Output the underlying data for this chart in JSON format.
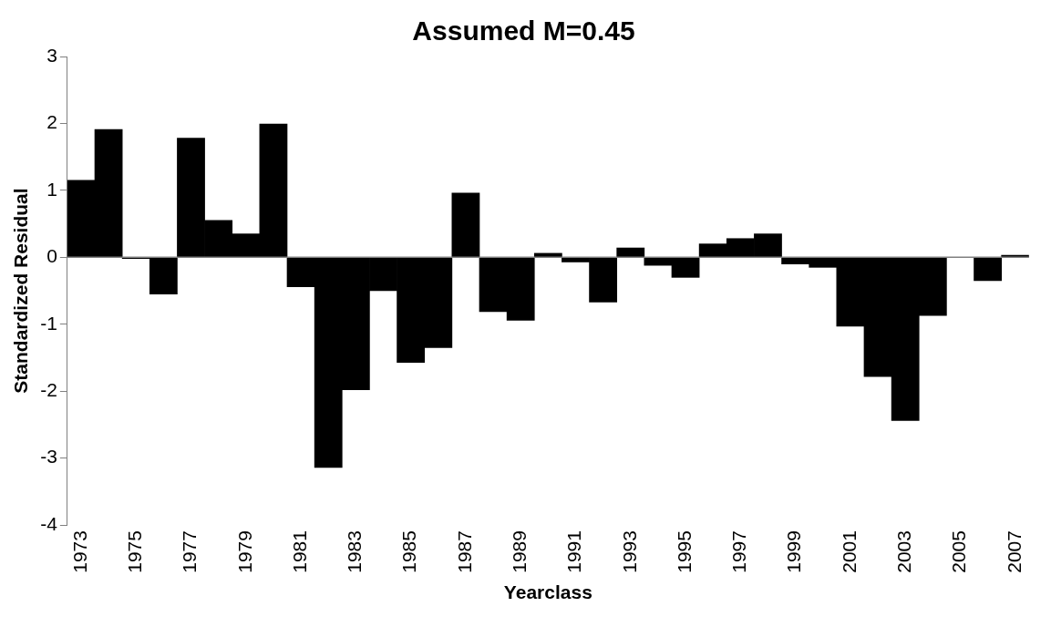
{
  "chart_data": {
    "type": "bar",
    "title": "Assumed M=0.45",
    "xlabel": "Yearclass",
    "ylabel": "Standardized Residual",
    "categories": [
      "1973",
      null,
      "1975",
      null,
      "1977",
      null,
      "1979",
      null,
      "1981",
      null,
      "1983",
      null,
      "1985",
      null,
      "1987",
      null,
      "1989",
      null,
      "1991",
      null,
      "1993",
      null,
      "1995",
      null,
      "1997",
      null,
      "1999",
      null,
      "2001",
      null,
      "2003",
      null,
      "2005",
      null,
      "2007"
    ],
    "series": [
      {
        "color": "#000000",
        "values": [
          1.15,
          1.91,
          -0.02,
          -0.55,
          1.78,
          0.55,
          0.35,
          1.99,
          -0.44,
          -3.14,
          -1.98,
          -0.5,
          -1.57,
          -1.35,
          0.96,
          -0.81,
          -0.94,
          0.06,
          -0.07,
          -0.67,
          0.14,
          -0.12,
          -0.3,
          0.2,
          0.28,
          0.35,
          -0.1,
          -0.15,
          -1.03,
          -1.78,
          -2.44,
          -0.87,
          0,
          -0.35,
          0.03
        ]
      }
    ],
    "ylim": [
      -4,
      3
    ],
    "yticks": [
      -4,
      -3,
      -2,
      -1,
      0,
      1,
      2,
      3
    ],
    "grid": false,
    "legend": false,
    "ref_lines": [
      {
        "axis": "y",
        "value": 0,
        "color": "#808080"
      }
    ]
  }
}
